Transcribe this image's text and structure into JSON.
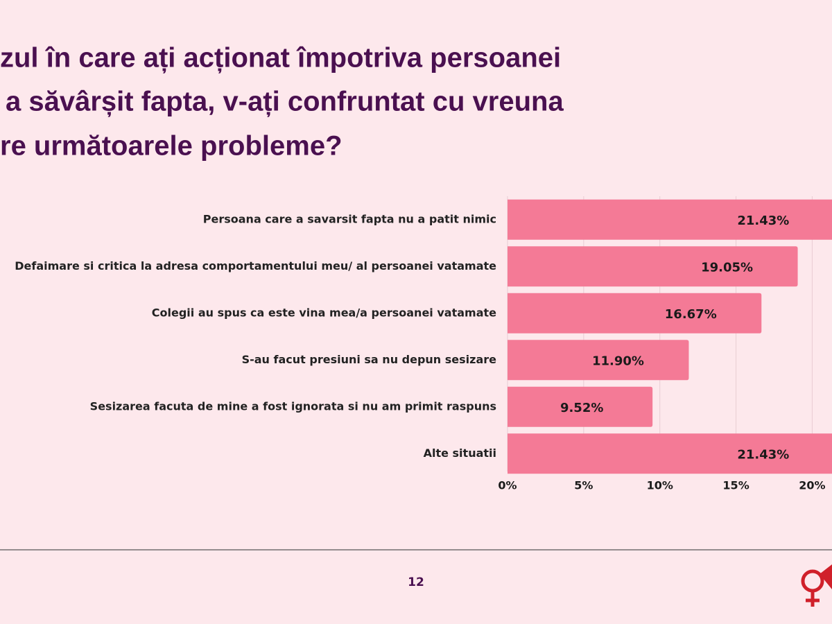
{
  "chart_data": {
    "type": "hbar",
    "title_lines": [
      "zul în care ați acționat împotriva persoanei",
      "a săvârșit fapta, v-ați confruntat cu vreuna",
      "re următoarele probleme?"
    ],
    "categories": [
      "Persoana care a savarsit fapta nu a patit nimic",
      "Defaimare si critica la adresa comportamentului meu/ al persoanei vatamate",
      "Colegii au spus ca este vina mea/a persoanei vatamate",
      "S-au facut presiuni sa nu depun sesizare",
      "Sesizarea facuta de mine a fost ignorata si nu am primit raspuns",
      "Alte situatii"
    ],
    "values": [
      21.43,
      19.05,
      16.67,
      11.9,
      9.52,
      21.43
    ],
    "value_labels": [
      "21.43%",
      "19.05%",
      "16.67%",
      "11.90%",
      "9.52%",
      "21.43%"
    ],
    "color": "#f47a96",
    "xlim": [
      0,
      21.3
    ],
    "xticks": [
      {
        "value": 0,
        "label": "0%"
      },
      {
        "value": 5,
        "label": "5%"
      },
      {
        "value": 10,
        "label": "10%"
      },
      {
        "value": 15,
        "label": "15%"
      },
      {
        "value": 20,
        "label": "20%"
      }
    ],
    "grid": true
  },
  "page_number": "12"
}
